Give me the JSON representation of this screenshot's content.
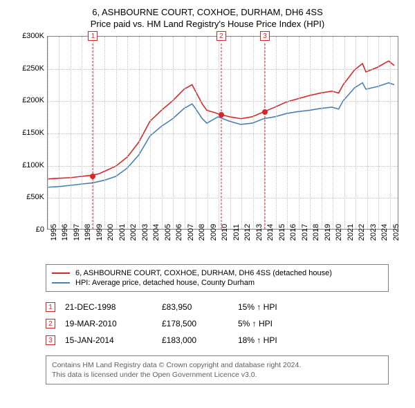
{
  "title": {
    "line1": "6, ASHBOURNE COURT, COXHOE, DURHAM, DH6 4SS",
    "line2": "Price paid vs. HM Land Registry's House Price Index (HPI)"
  },
  "chart": {
    "type": "line",
    "background_color": "#ffffff",
    "grid_color": "#c0c0c0",
    "border_color": "#808080",
    "x": {
      "min": 1995,
      "max": 2025.8,
      "ticks": [
        1995,
        1996,
        1997,
        1998,
        1999,
        2000,
        2001,
        2002,
        2003,
        2004,
        2005,
        2006,
        2007,
        2008,
        2009,
        2010,
        2011,
        2012,
        2013,
        2014,
        2015,
        2016,
        2017,
        2018,
        2019,
        2020,
        2021,
        2022,
        2023,
        2024,
        2025
      ]
    },
    "y": {
      "min": 0,
      "max": 300000,
      "ticks": [
        0,
        50000,
        100000,
        150000,
        200000,
        250000,
        300000
      ],
      "tick_labels": [
        "£0",
        "£50K",
        "£100K",
        "£150K",
        "£200K",
        "£250K",
        "£300K"
      ]
    },
    "series": [
      {
        "name": "property",
        "label": "6, ASHBOURNE COURT, COXHOE, DURHAM, DH6 4SS (detached house)",
        "color": "#d62728",
        "line_width": 1.6,
        "data": [
          [
            1995,
            78000
          ],
          [
            1996,
            79000
          ],
          [
            1997,
            80000
          ],
          [
            1998,
            82000
          ],
          [
            1998.97,
            83950
          ],
          [
            1999.5,
            86000
          ],
          [
            2000,
            90000
          ],
          [
            2001,
            98000
          ],
          [
            2002,
            112000
          ],
          [
            2003,
            135000
          ],
          [
            2004,
            168000
          ],
          [
            2005,
            185000
          ],
          [
            2006,
            200000
          ],
          [
            2007,
            218000
          ],
          [
            2007.7,
            225000
          ],
          [
            2008,
            215000
          ],
          [
            2008.6,
            195000
          ],
          [
            2009,
            185000
          ],
          [
            2009.6,
            182000
          ],
          [
            2010.21,
            178500
          ],
          [
            2011,
            175000
          ],
          [
            2012,
            172000
          ],
          [
            2013,
            175000
          ],
          [
            2014.04,
            183000
          ],
          [
            2015,
            190000
          ],
          [
            2016,
            198000
          ],
          [
            2017,
            203000
          ],
          [
            2018,
            208000
          ],
          [
            2019,
            212000
          ],
          [
            2020,
            215000
          ],
          [
            2020.6,
            212000
          ],
          [
            2021,
            225000
          ],
          [
            2022,
            248000
          ],
          [
            2022.7,
            258000
          ],
          [
            2023,
            245000
          ],
          [
            2024,
            252000
          ],
          [
            2025,
            262000
          ],
          [
            2025.5,
            255000
          ]
        ]
      },
      {
        "name": "hpi",
        "label": "HPI: Average price, detached house, County Durham",
        "color": "#4a7fb0",
        "line_width": 1.6,
        "data": [
          [
            1995,
            65000
          ],
          [
            1996,
            66000
          ],
          [
            1997,
            68000
          ],
          [
            1998,
            70000
          ],
          [
            1999,
            72000
          ],
          [
            2000,
            76000
          ],
          [
            2001,
            82000
          ],
          [
            2002,
            95000
          ],
          [
            2003,
            115000
          ],
          [
            2004,
            145000
          ],
          [
            2005,
            160000
          ],
          [
            2006,
            172000
          ],
          [
            2007,
            188000
          ],
          [
            2007.7,
            195000
          ],
          [
            2008,
            188000
          ],
          [
            2008.6,
            172000
          ],
          [
            2009,
            165000
          ],
          [
            2010,
            175000
          ],
          [
            2011,
            168000
          ],
          [
            2012,
            163000
          ],
          [
            2013,
            165000
          ],
          [
            2014,
            172000
          ],
          [
            2015,
            175000
          ],
          [
            2016,
            180000
          ],
          [
            2017,
            183000
          ],
          [
            2018,
            185000
          ],
          [
            2019,
            188000
          ],
          [
            2020,
            190000
          ],
          [
            2020.6,
            187000
          ],
          [
            2021,
            200000
          ],
          [
            2022,
            220000
          ],
          [
            2022.7,
            228000
          ],
          [
            2023,
            218000
          ],
          [
            2024,
            222000
          ],
          [
            2025,
            228000
          ],
          [
            2025.5,
            225000
          ]
        ]
      }
    ],
    "markers": [
      {
        "n": "1",
        "date_label": "21-DEC-1998",
        "x": 1998.97,
        "price": 83950,
        "price_label": "£83,950",
        "pct_label": "15% ↑ HPI"
      },
      {
        "n": "2",
        "date_label": "19-MAR-2010",
        "x": 2010.21,
        "price": 178500,
        "price_label": "£178,500",
        "pct_label": "5% ↑ HPI"
      },
      {
        "n": "3",
        "date_label": "15-JAN-2014",
        "x": 2014.04,
        "price": 183000,
        "price_label": "£183,000",
        "pct_label": "18% ↑ HPI"
      }
    ]
  },
  "legend_title": "",
  "attribution": {
    "line1": "Contains HM Land Registry data © Crown copyright and database right 2024.",
    "line2": "This data is licensed under the Open Government Licence v3.0."
  }
}
